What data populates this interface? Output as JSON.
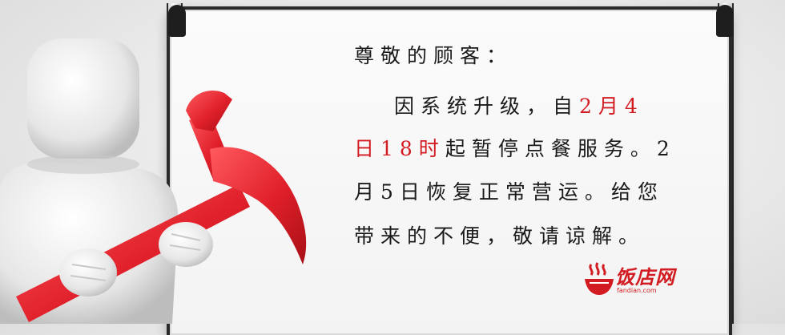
{
  "notice": {
    "greeting": "尊敬的顾客：",
    "line2_prefix": "因系统升级，自",
    "line2_date": "2月4",
    "line3_date": "日18时",
    "line3_rest": "起暂停点餐服务。2",
    "line4": "月5日恢复正常营运。给您",
    "line5": "带来的不便，敬请谅解。"
  },
  "brand": {
    "name": "饭店网",
    "domain": "fandian.com"
  },
  "colors": {
    "accent": "#d31c22",
    "text": "#1a1a1a",
    "board_frame": "#2a2a2a"
  },
  "icons": {
    "figure": "white-figure-holding-hammer-illustration",
    "logo": "steaming-bowl-logo"
  }
}
